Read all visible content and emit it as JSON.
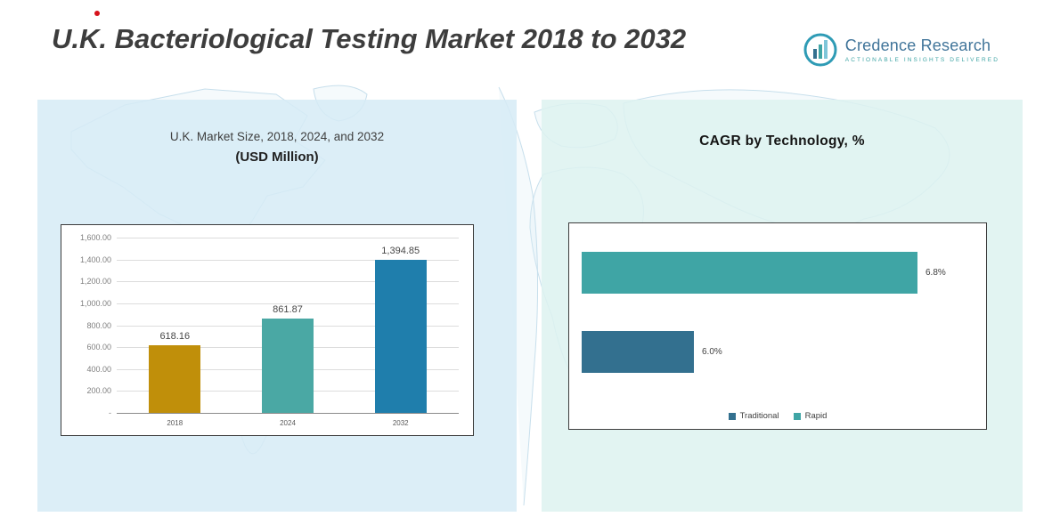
{
  "page": {
    "title": "U.K. Bacteriological Testing Market 2018 to 2032"
  },
  "logo": {
    "brand": "Credence Research",
    "tagline": "Actionable Insights Delivered",
    "icon": "bar-chart-circle-icon",
    "brand_color": "#41759a",
    "accent_color": "#3fa5a5"
  },
  "left_panel": {
    "title_line1": "U.K. Market Size, 2018, 2024, and 2032",
    "title_line2": "(USD Million)"
  },
  "right_panel": {
    "title": "CAGR by Technology, %"
  },
  "chart_data": [
    {
      "type": "bar",
      "title": "U.K. Market Size, 2018, 2024, and 2032 (USD Million)",
      "categories": [
        "2018",
        "2024",
        "2032"
      ],
      "values": [
        618.16,
        861.87,
        1394.85
      ],
      "value_labels": [
        "618.16",
        "861.87",
        "1,394.85"
      ],
      "bar_colors": [
        "#c08f0a",
        "#4aa8a4",
        "#1f7eac"
      ],
      "ylim": [
        0,
        1600
      ],
      "ytick_labels": [
        "1,600.00",
        "1,400.00",
        "1,200.00",
        "1,000.00",
        "800.00",
        "600.00",
        "400.00",
        "200.00",
        "-"
      ],
      "grid": true,
      "legend_position": "none"
    },
    {
      "type": "bar-horizontal",
      "title": "CAGR by Technology, %",
      "categories": [
        "Rapid",
        "Traditional"
      ],
      "values": [
        6.8,
        6.0
      ],
      "value_labels": [
        "6.8%",
        "6.0%"
      ],
      "bar_colors": [
        "#3fa5a5",
        "#33708f"
      ],
      "xlim": [
        5.6,
        7.0
      ],
      "grid": false,
      "legend_position": "bottom",
      "legend": [
        {
          "label": "Traditional",
          "color": "#33708f"
        },
        {
          "label": "Rapid",
          "color": "#3fa5a5"
        }
      ]
    }
  ]
}
